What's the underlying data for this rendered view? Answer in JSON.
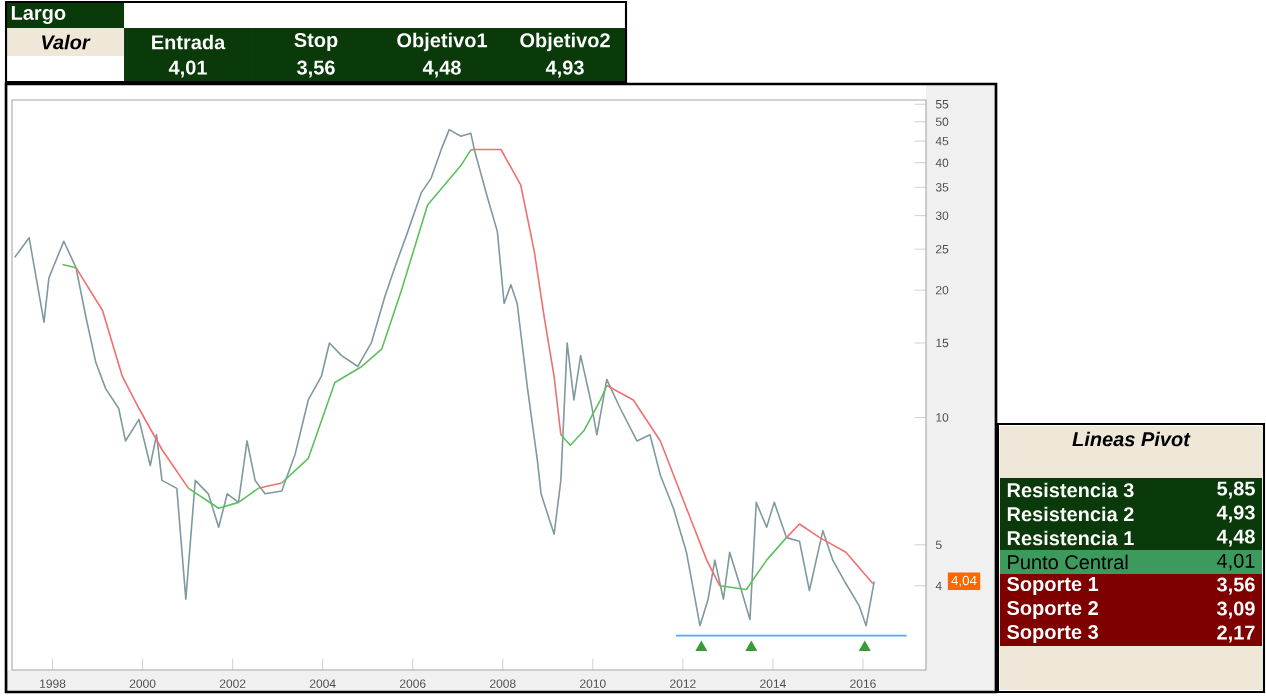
{
  "chart_data": {
    "type": "line",
    "log": "y",
    "xlim": [
      1997.1,
      2017.4
    ],
    "xticks": [
      1998,
      2000,
      2002,
      2004,
      2006,
      2008,
      2010,
      2012,
      2014,
      2016
    ],
    "ylim": [
      2.53,
      56.3
    ],
    "yticks": [
      4,
      5,
      10,
      15,
      20,
      25,
      30,
      35,
      40,
      45,
      50,
      55
    ],
    "series": [
      {
        "color": "#7f9a9e",
        "x": [
          1997.16,
          1997.48,
          1997.81,
          1997.92,
          1998.25,
          1998.52,
          1998.74,
          1998.96,
          1999.18,
          1999.47,
          1999.62,
          1999.92,
          2000.17,
          2000.31,
          2000.43,
          2000.76,
          2000.96,
          2001.17,
          2001.46,
          2001.69,
          2001.88,
          2002.13,
          2002.32,
          2002.5,
          2002.72,
          2003.09,
          2003.39,
          2003.68,
          2003.97,
          2004.15,
          2004.42,
          2004.78,
          2005.08,
          2005.38,
          2005.6,
          2005.89,
          2006.19,
          2006.41,
          2006.63,
          2006.81,
          2007.07,
          2007.29,
          2007.37,
          2007.66,
          2007.88,
          2008.03,
          2008.18,
          2008.32,
          2008.55,
          2008.77,
          2008.85,
          2009.14,
          2009.29,
          2009.43,
          2009.58,
          2009.73,
          2009.95,
          2010.09,
          2010.31,
          2010.61,
          2010.98,
          2011.27,
          2011.5,
          2011.79,
          2012.08,
          2012.38,
          2012.56,
          2012.71,
          2012.9,
          2013.04,
          2013.27,
          2013.49,
          2013.63,
          2013.86,
          2014.03,
          2014.3,
          2014.59,
          2014.81,
          2015.11,
          2015.33,
          2015.62,
          2015.92,
          2016.07,
          2016.25
        ],
        "values": [
          23.9,
          26.6,
          16.8,
          21.4,
          26.1,
          22.6,
          17.3,
          13.5,
          11.7,
          10.5,
          8.8,
          9.9,
          7.7,
          9.1,
          7.1,
          6.8,
          3.72,
          7.1,
          6.6,
          5.5,
          6.6,
          6.3,
          8.8,
          7.1,
          6.6,
          6.7,
          8.2,
          11.0,
          12.5,
          15.0,
          14.0,
          13.2,
          15.0,
          19.3,
          22.6,
          27.5,
          34.0,
          36.8,
          42.9,
          47.9,
          46.2,
          47.0,
          42.9,
          33.1,
          27.5,
          18.6,
          20.6,
          18.6,
          11.7,
          7.9,
          6.6,
          5.3,
          7.1,
          15.0,
          11.0,
          14.0,
          11.0,
          9.1,
          12.3,
          10.5,
          8.8,
          9.1,
          7.3,
          6.1,
          4.8,
          3.22,
          3.72,
          4.6,
          3.72,
          4.8,
          4.0,
          3.33,
          6.3,
          5.5,
          6.3,
          5.2,
          5.1,
          3.9,
          5.4,
          4.6,
          4.05,
          3.58,
          3.22,
          4.1
        ]
      },
      {
        "color": "#f07070",
        "x": [
          1998.52,
          1999.11,
          1999.55,
          1999.92,
          2000.43,
          2001.02,
          2001.5,
          2002.57,
          2003.09,
          2005.0,
          2007.29,
          2007.37,
          2007.96,
          2008.4,
          2008.7,
          2008.92,
          2009.14,
          2009.29,
          2009.8,
          2010.31,
          2010.9,
          2011.5,
          2012.08,
          2012.53,
          2012.82,
          2013.5,
          2014.3,
          2014.59,
          2015.04,
          2015.62,
          2016.22
        ],
        "values": [
          22.6,
          17.9,
          12.5,
          10.5,
          8.4,
          6.8,
          null,
          6.8,
          7.0,
          null,
          42.9,
          43.0,
          43.0,
          35.4,
          24.7,
          17.3,
          12.5,
          9.1,
          null,
          11.9,
          11.0,
          8.8,
          6.1,
          4.6,
          4.0,
          null,
          5.2,
          5.6,
          5.2,
          4.8,
          4.05
        ]
      },
      {
        "color": "#5cc05c",
        "x": [
          1998.22,
          1998.52,
          1999.0,
          2001.02,
          2001.69,
          2002.13,
          2002.57,
          2002.8,
          2003.09,
          2003.68,
          2004.27,
          2004.87,
          2005.31,
          2005.75,
          2006.33,
          2007.07,
          2007.29,
          2008.0,
          2009.29,
          2009.5,
          2009.8,
          2010.17,
          2010.31,
          2011.5,
          2012.82,
          2013.41,
          2013.86,
          2014.3
        ],
        "values": [
          23.0,
          22.6,
          null,
          6.8,
          6.1,
          6.3,
          6.8,
          null,
          7.0,
          8.0,
          12.1,
          13.2,
          14.5,
          20.0,
          31.8,
          39.4,
          42.9,
          null,
          9.1,
          8.6,
          9.3,
          11.0,
          11.9,
          null,
          4.0,
          3.92,
          4.6,
          5.2
        ]
      },
      {
        "color": "#5aa8e0",
        "x": [
          2011.85,
          2016.97
        ],
        "values": [
          3.05,
          3.05
        ]
      },
      {
        "type": "scatter",
        "marker": "triangle",
        "color": "#3a9a3a",
        "x": [
          2012.41,
          2013.52,
          2016.04
        ],
        "values": [
          2.86,
          2.86,
          2.86
        ]
      }
    ],
    "annotations": [
      "Largo",
      "Valor",
      "Entrada",
      "Stop",
      "Objetivo1",
      "Objetivo2",
      "4,01",
      "3,56",
      "4,48",
      "4,93",
      "Lineas Pivot",
      "Resistencia 3",
      "5,85",
      "Resistencia 2",
      "4,93",
      "Resistencia 1",
      "4,48",
      "Punto Central",
      "4,01",
      "Soporte 1",
      "3,56",
      "Soporte 2",
      "3,09",
      "Soporte 3",
      "2,17",
      "4,04"
    ]
  }
}
